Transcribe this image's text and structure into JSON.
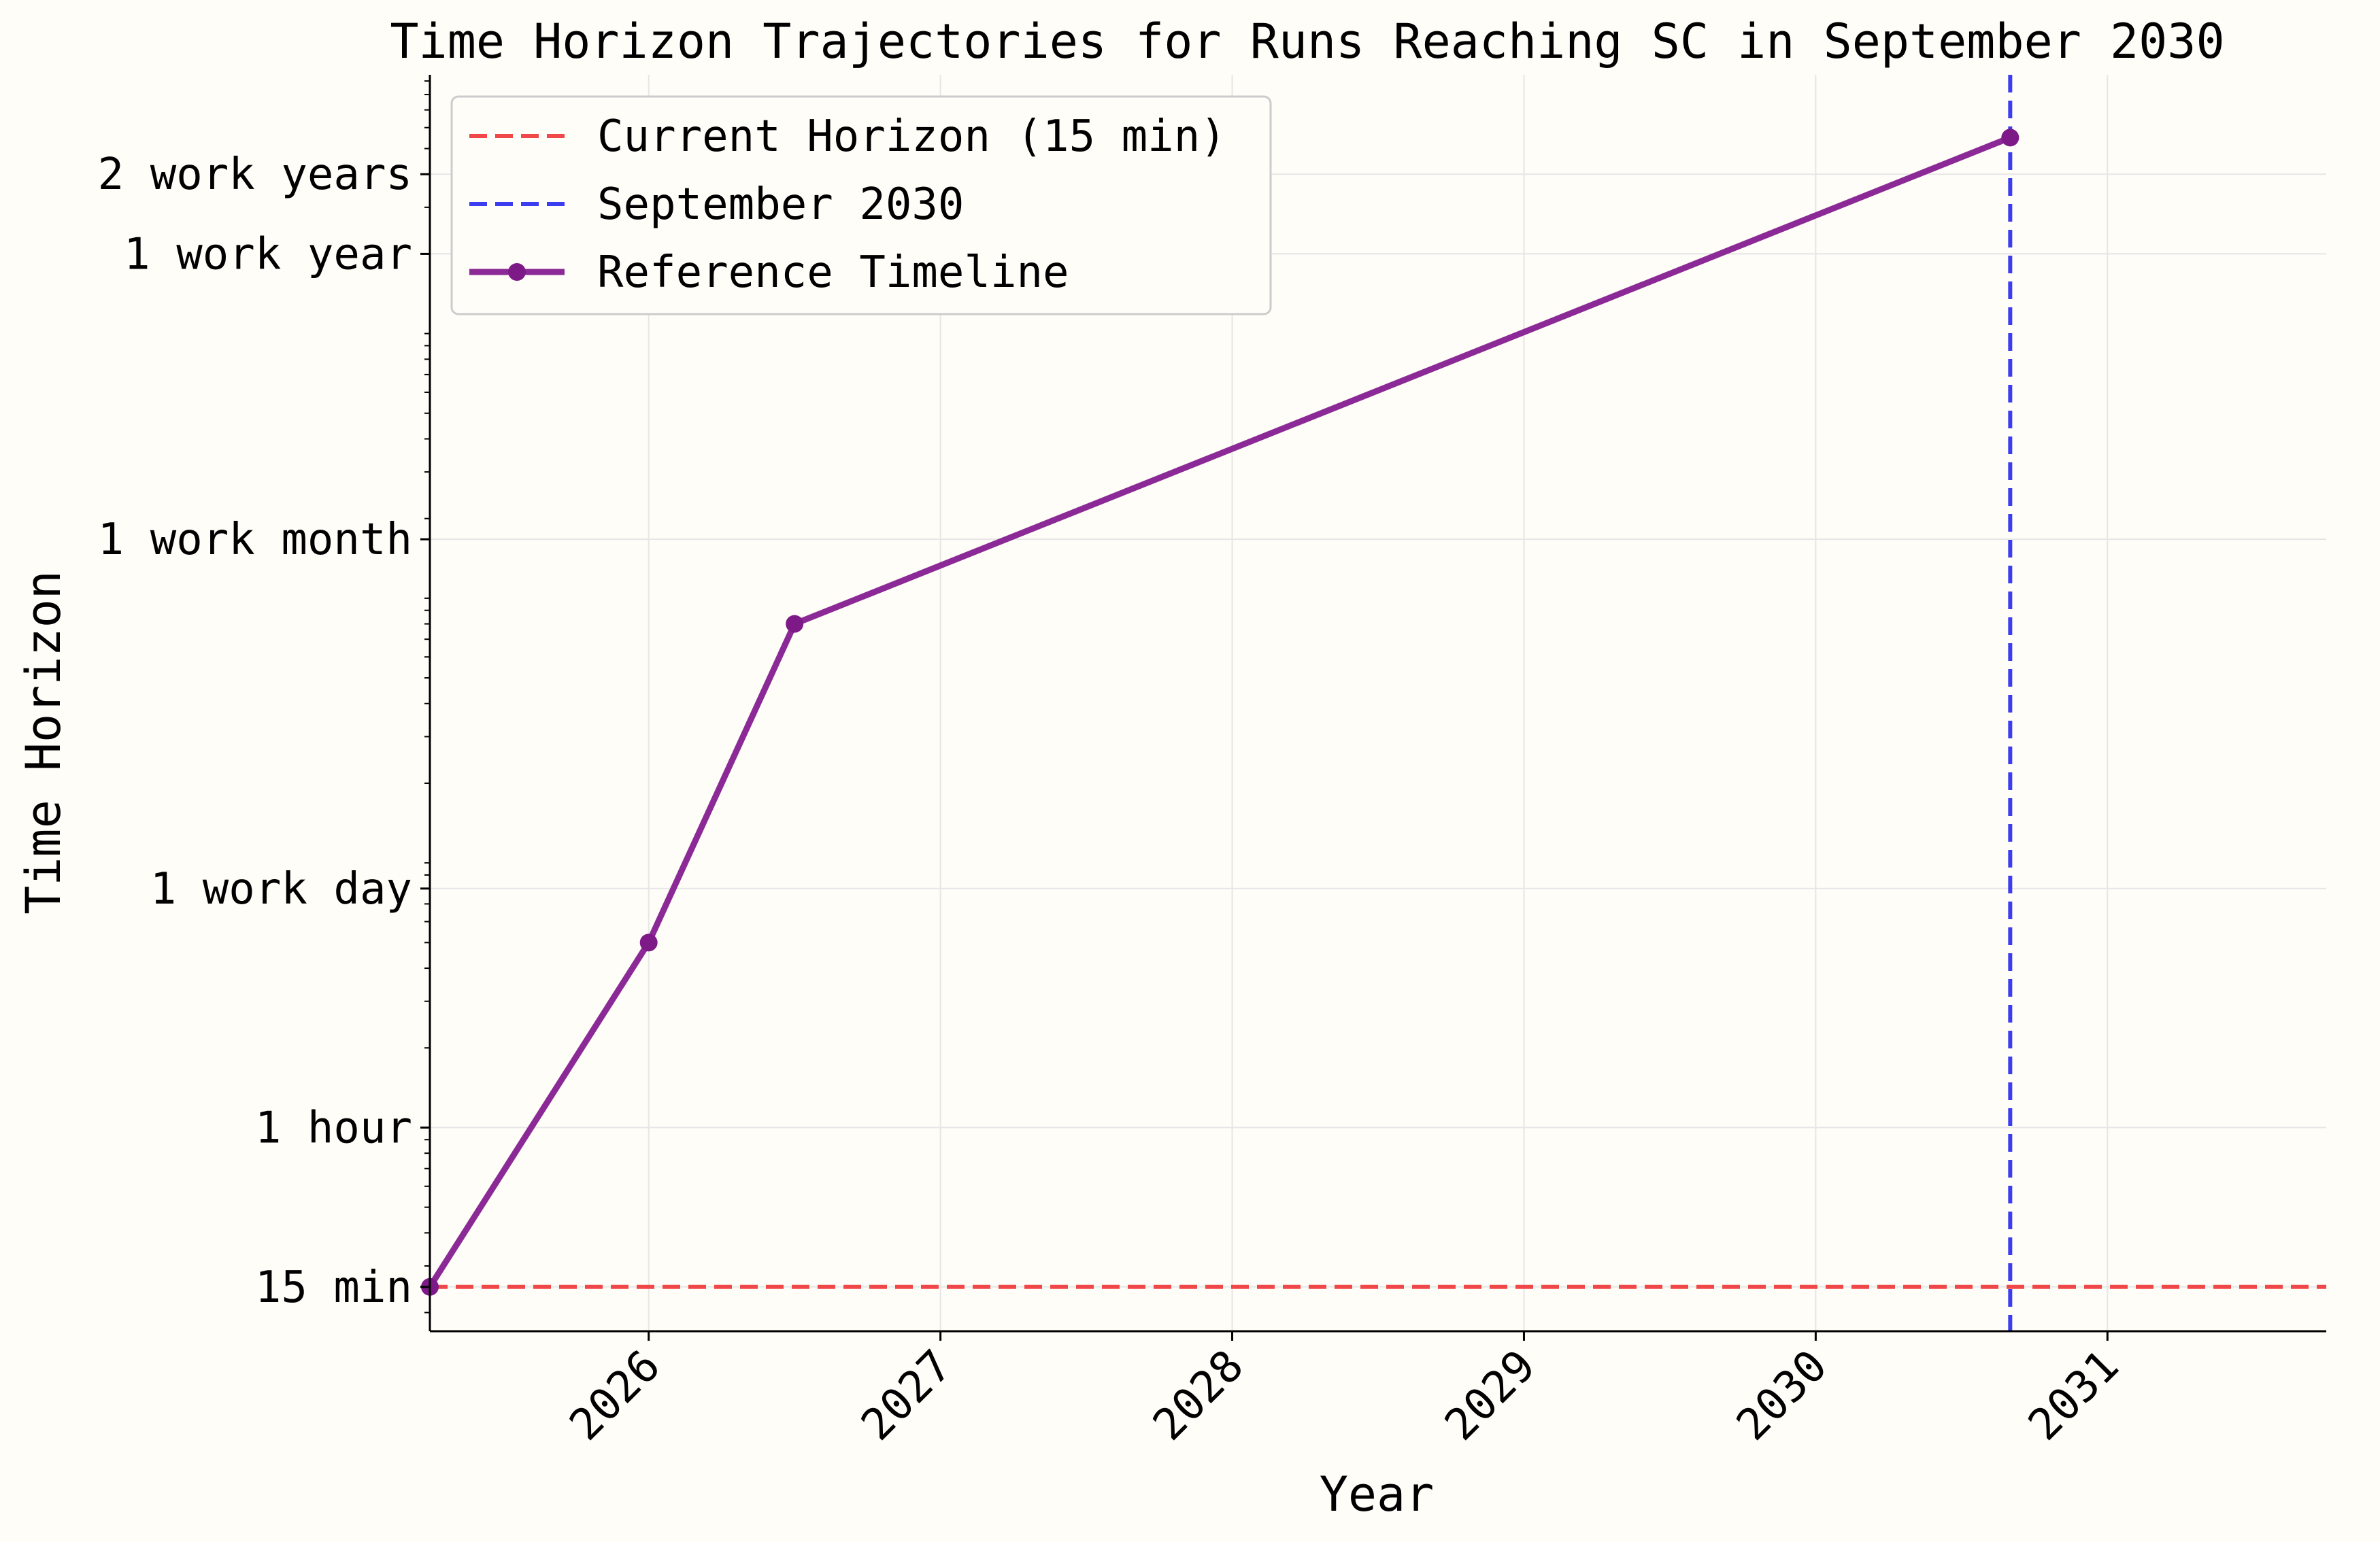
{
  "chart_data": {
    "type": "line",
    "title": "Time Horizon Trajectories for Runs Reaching SC in September 2030",
    "xlabel": "Year",
    "ylabel": "Time Horizon",
    "x_scale": "time",
    "y_scale": "log",
    "xlim": [
      "2025-04",
      "2031-10"
    ],
    "x_ticks": [
      "2026",
      "2027",
      "2028",
      "2029",
      "2030",
      "2031"
    ],
    "y_unit": "hours",
    "y_ticks": [
      {
        "label": "15 min",
        "value": 0.25
      },
      {
        "label": "1 hour",
        "value": 1
      },
      {
        "label": "1 work day",
        "value": 8
      },
      {
        "label": "1 work month",
        "value": 167
      },
      {
        "label": "1 work year",
        "value": 2000
      },
      {
        "label": "2 work years",
        "value": 4000
      }
    ],
    "grid": true,
    "legend_position": "top-left",
    "series": [
      {
        "name": "Reference Timeline",
        "color": "#8b2a96",
        "style": "solid-with-markers",
        "x": [
          "2025-04",
          "2026-01",
          "2026-07",
          "2030-09"
        ],
        "y": [
          0.25,
          5,
          80,
          5500
        ]
      }
    ],
    "reference_lines": [
      {
        "name": "Current Horizon (15 min)",
        "orientation": "horizontal",
        "y": 0.25,
        "color": "#f04848",
        "style": "dashed"
      },
      {
        "name": "September 2030",
        "orientation": "vertical",
        "x": "2030-09",
        "color": "#3c3cf0",
        "style": "dashed"
      }
    ]
  }
}
